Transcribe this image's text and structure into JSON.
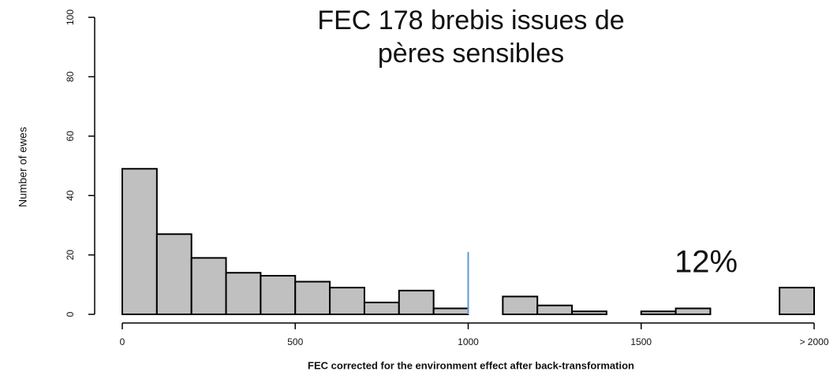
{
  "chart_data": {
    "type": "histogram",
    "title": [
      "FEC 178 brebis issues de",
      "pères sensibles"
    ],
    "xlabel": "FEC  corrected for the environment effect after back-transformation",
    "ylabel": "Number of ewes",
    "bins": [
      0,
      100,
      200,
      300,
      400,
      500,
      600,
      700,
      800,
      900,
      1000,
      1100,
      1200,
      1300,
      1400,
      1500,
      1600,
      1700,
      1800,
      1900,
      2000
    ],
    "counts": [
      49,
      27,
      19,
      14,
      13,
      11,
      9,
      4,
      8,
      2,
      0,
      6,
      3,
      1,
      0,
      1,
      2,
      0,
      0,
      9
    ],
    "color": "#c0c0c0",
    "xlim": [
      0,
      2000
    ],
    "ylim": [
      0,
      100
    ],
    "xticks": [
      0,
      500,
      1000,
      1500,
      {
        "value": 2000,
        "label": "> 2000"
      }
    ],
    "yticks": [
      0,
      20,
      40,
      60,
      80,
      100
    ],
    "vline": {
      "x": 1000,
      "ymax": 21,
      "color": "#5b9bd5"
    },
    "annotation": "12%"
  }
}
